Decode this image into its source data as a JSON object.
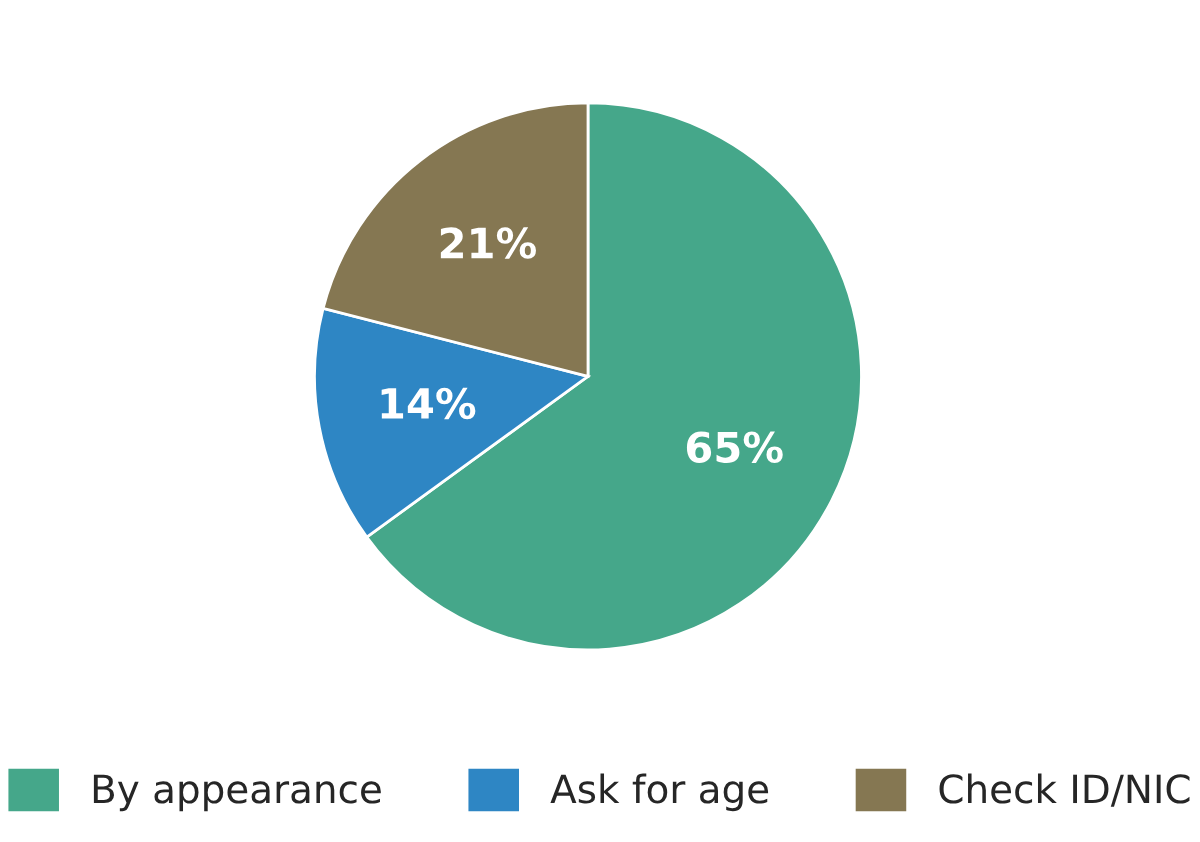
{
  "chart_data": {
    "type": "pie",
    "categories": [
      "By appearance",
      "Ask for age",
      "Check ID/NIC"
    ],
    "values": [
      65,
      14,
      21
    ],
    "colors": [
      "#45a78a",
      "#2e86c4",
      "#857752"
    ],
    "value_labels": [
      "65%",
      "14%",
      "21%"
    ],
    "legend": "bottom"
  }
}
